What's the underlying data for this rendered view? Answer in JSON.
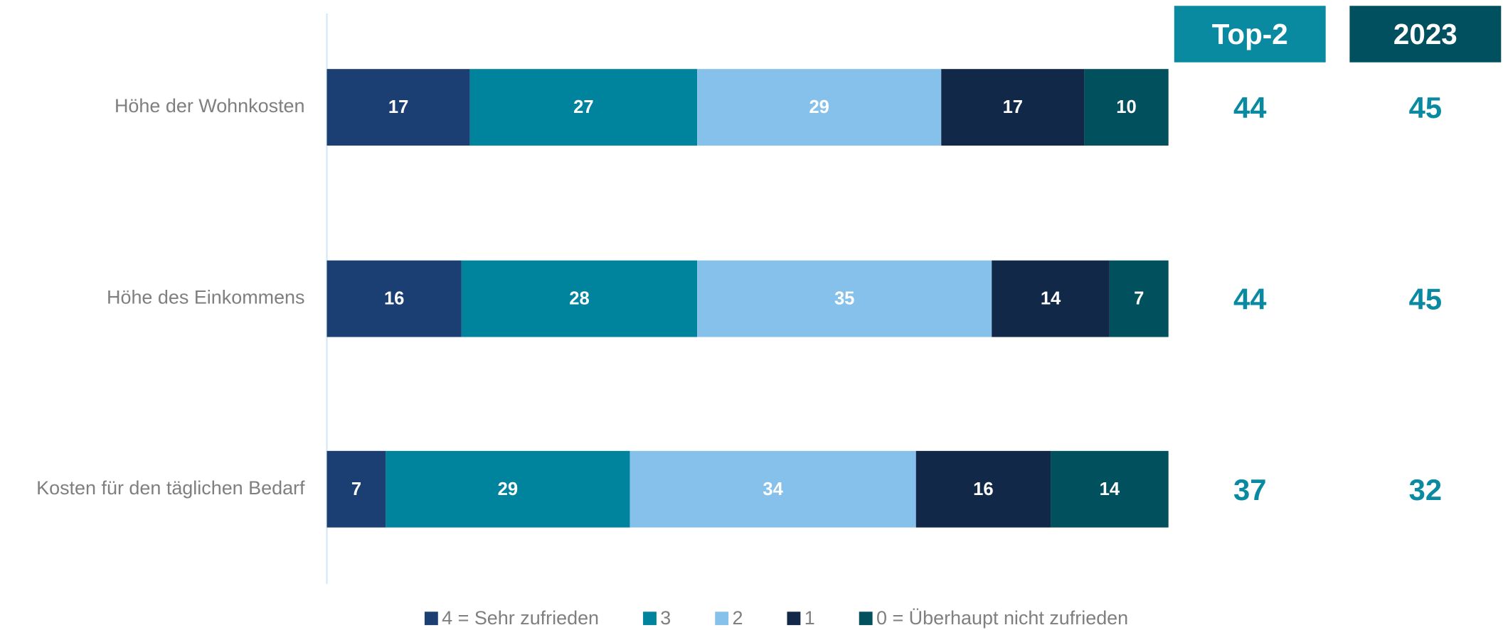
{
  "chart_data": {
    "type": "bar",
    "orientation": "horizontal",
    "stacked": true,
    "categories": [
      "Höhe der Wohnkosten",
      "Höhe des Einkommens",
      "Kosten für den täglichen Bedarf"
    ],
    "series": [
      {
        "name": "4 = Sehr zufrieden",
        "color": "#1b3f73",
        "values": [
          17,
          16,
          7
        ]
      },
      {
        "name": "3",
        "color": "#00849e",
        "values": [
          27,
          28,
          29
        ]
      },
      {
        "name": "2",
        "color": "#85c1ea",
        "values": [
          29,
          35,
          34
        ]
      },
      {
        "name": "1",
        "color": "#112849",
        "values": [
          17,
          14,
          16
        ]
      },
      {
        "name": "0 = Überhaupt nicht zufrieden",
        "color": "#00505e",
        "values": [
          10,
          7,
          14
        ]
      }
    ],
    "xlim": [
      0,
      100
    ],
    "columns": [
      {
        "header": "Top-2",
        "color": "#0a8aa0",
        "values": [
          44,
          44,
          37
        ]
      },
      {
        "header": "2023",
        "color": "#01505f",
        "values": [
          45,
          45,
          32
        ]
      }
    ],
    "legend": "bottom"
  }
}
